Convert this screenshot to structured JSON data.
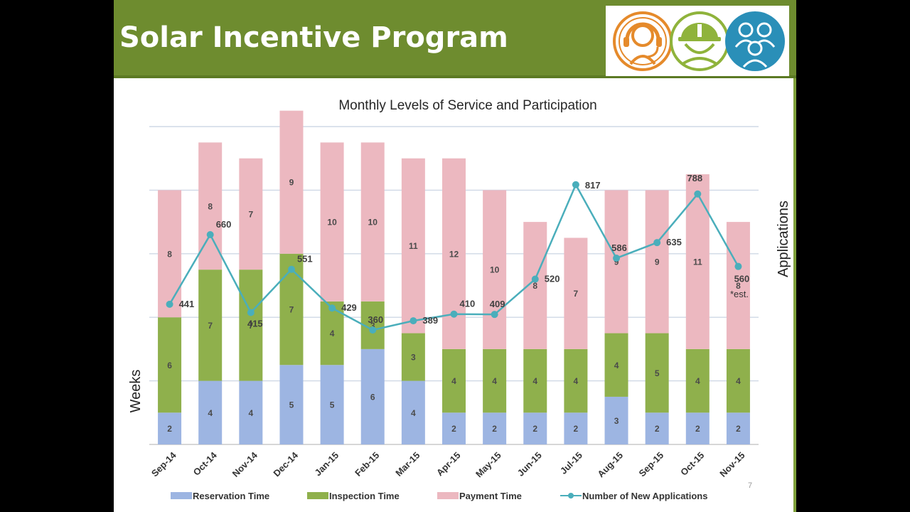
{
  "slide": {
    "title": "Solar Incentive Program",
    "page_number": "7"
  },
  "logos": [
    {
      "icon": "headset-person-icon",
      "color": "#e58a2b"
    },
    {
      "icon": "hardhat-worker-icon",
      "color": "#8fb33b"
    },
    {
      "icon": "people-group-icon",
      "color": "#2a9ac3"
    }
  ],
  "colors": {
    "title_bar": "#6e8c2f",
    "reservation": "#9db5e2",
    "inspection": "#8fb04c",
    "payment": "#ecb8c0",
    "line": "#4aaebb"
  },
  "chart_data": {
    "type": "bar",
    "stacked": true,
    "title": "Monthly Levels of Service and Participation",
    "ylabel": "Weeks",
    "y2label": "Applications",
    "categories": [
      "Sep-14",
      "Oct-14",
      "Nov-14",
      "Dec-14",
      "Jan-15",
      "Feb-15",
      "Mar-15",
      "Apr-15",
      "May-15",
      "Jun-15",
      "Jul-15",
      "Aug-15",
      "Sep-15",
      "Oct-15",
      "Nov-15"
    ],
    "series": [
      {
        "name": "Reservation Time",
        "type": "bar",
        "values": [
          2,
          4,
          4,
          5,
          5,
          6,
          4,
          2,
          2,
          2,
          2,
          3,
          2,
          2,
          2
        ]
      },
      {
        "name": "Inspection Time",
        "type": "bar",
        "values": [
          6,
          7,
          7,
          7,
          4,
          3,
          3,
          4,
          4,
          4,
          4,
          4,
          5,
          4,
          4
        ]
      },
      {
        "name": "Payment Time",
        "type": "bar",
        "values": [
          8,
          8,
          7,
          9,
          10,
          10,
          11,
          12,
          10,
          8,
          7,
          9,
          9,
          11,
          8
        ]
      },
      {
        "name": "Number of New Applications",
        "type": "line",
        "axis": "secondary",
        "values": [
          441,
          660,
          415,
          551,
          429,
          360,
          389,
          410,
          409,
          520,
          817,
          586,
          635,
          788,
          560
        ]
      }
    ],
    "annotations": [
      {
        "category": "Nov-15",
        "text": "*est."
      }
    ],
    "ylim": [
      0,
      20
    ],
    "y2lim": [
      0,
      1000
    ],
    "grid": true,
    "legend": "bottom"
  }
}
